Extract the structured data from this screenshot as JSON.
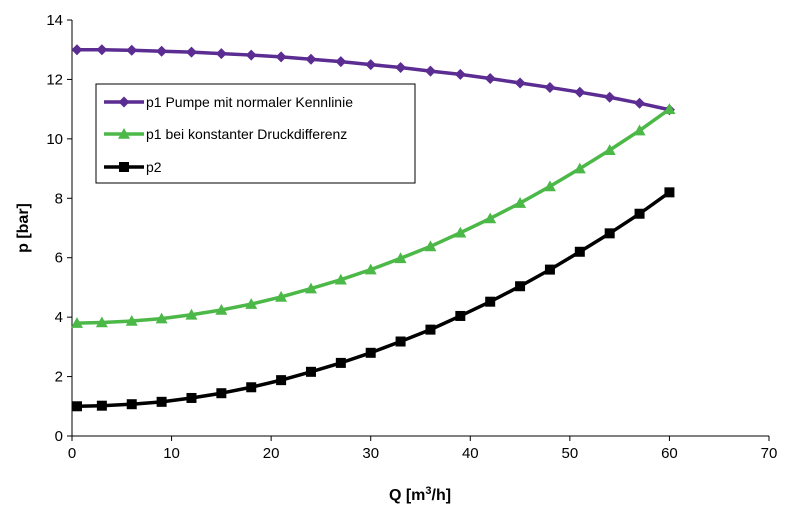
{
  "chart_data": {
    "type": "line",
    "xlabel": "Q [m",
    "xlabel_sup": "3",
    "xlabel_suffix": "/h]",
    "ylabel": "p [bar]",
    "xlim": [
      0,
      70
    ],
    "ylim": [
      0,
      14
    ],
    "x_ticks": [
      "0",
      "10",
      "20",
      "30",
      "40",
      "50",
      "60",
      "70"
    ],
    "y_ticks": [
      "0",
      "2",
      "4",
      "6",
      "8",
      "10",
      "12",
      "14"
    ],
    "grid": false,
    "legend_position": "top-left",
    "x": [
      0.5,
      3,
      6,
      9,
      12,
      15,
      18,
      21,
      24,
      27,
      30,
      33,
      36,
      39,
      42,
      45,
      48,
      51,
      54,
      57,
      60
    ],
    "series": [
      {
        "name": "p1 Pumpe mit normaler Kennlinie",
        "color": "#5b2c91",
        "marker": "diamond",
        "values": [
          13.0,
          13.0,
          12.98,
          12.95,
          12.92,
          12.87,
          12.82,
          12.76,
          12.68,
          12.6,
          12.5,
          12.4,
          12.28,
          12.17,
          12.03,
          11.88,
          11.73,
          11.57,
          11.4,
          11.2,
          10.98
        ]
      },
      {
        "name": "p1 bei konstanter Druckdifferenz",
        "color": "#4cb848",
        "marker": "triangle",
        "values": [
          3.8,
          3.82,
          3.87,
          3.95,
          4.08,
          4.24,
          4.44,
          4.68,
          4.96,
          5.26,
          5.6,
          5.98,
          6.38,
          6.84,
          7.32,
          7.84,
          8.4,
          9.0,
          9.62,
          10.28,
          11.0
        ]
      },
      {
        "name": "p2",
        "color": "#000000",
        "marker": "square",
        "values": [
          1.0,
          1.02,
          1.07,
          1.15,
          1.28,
          1.44,
          1.64,
          1.88,
          2.16,
          2.46,
          2.8,
          3.18,
          3.58,
          4.04,
          4.52,
          5.04,
          5.6,
          6.2,
          6.82,
          7.48,
          8.2
        ]
      }
    ]
  }
}
